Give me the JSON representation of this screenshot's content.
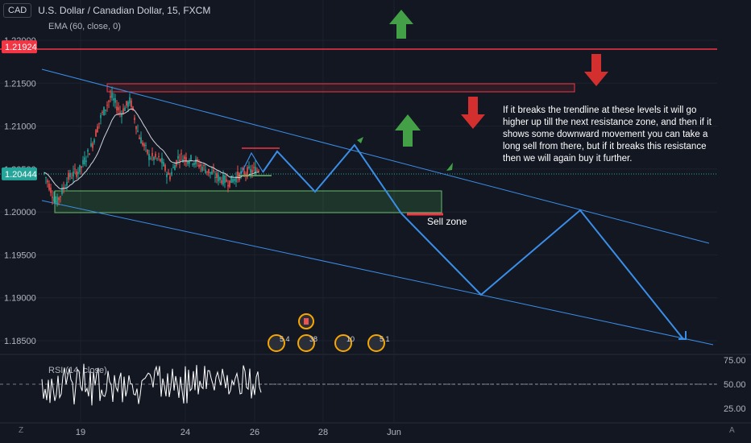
{
  "header": {
    "currency": "CAD",
    "title": "U.S. Dollar / Canadian Dollar, 15, FXCM"
  },
  "indicators": {
    "ema": "EMA (60, close, 0)",
    "rsi": "RSI (14, close)"
  },
  "annotations": {
    "note": "If it breaks the trendline at these levels it will go higher up till the next resistance zone, and then if it shows some downward movement you can take a long sell from there, but if it breaks this resistance then we will again buy it further.",
    "sell_zone": "Sell zone"
  },
  "footer": {
    "left": "Z",
    "right": "A"
  },
  "colors": {
    "background": "#131722",
    "up": "#26a69a",
    "down": "#ef5350",
    "trendline": "#3b8ee8",
    "resistance": "#f23645",
    "arrow_green": "#43a047",
    "arrow_red": "#d32f2f"
  },
  "chart_data": {
    "type": "line",
    "price_axis": {
      "ticks": [
        "1.22000",
        "1.21500",
        "1.21000",
        "1.20500",
        "1.20000",
        "1.19500",
        "1.19000",
        "1.18500"
      ],
      "ylim": [
        1.184,
        1.2215
      ]
    },
    "price_labels": [
      {
        "value": "1.21924",
        "color": "#f23645"
      },
      {
        "value": "1.20444",
        "color": "#26a69a"
      }
    ],
    "x_axis": {
      "ticks": [
        "19",
        "24",
        "26",
        "28",
        "Jun"
      ]
    },
    "rsi_axis": {
      "ticks": [
        "75.00",
        "50.00",
        "25.00"
      ]
    },
    "event_badges": [
      "5 4",
      "38",
      "10",
      "5 1"
    ]
  }
}
